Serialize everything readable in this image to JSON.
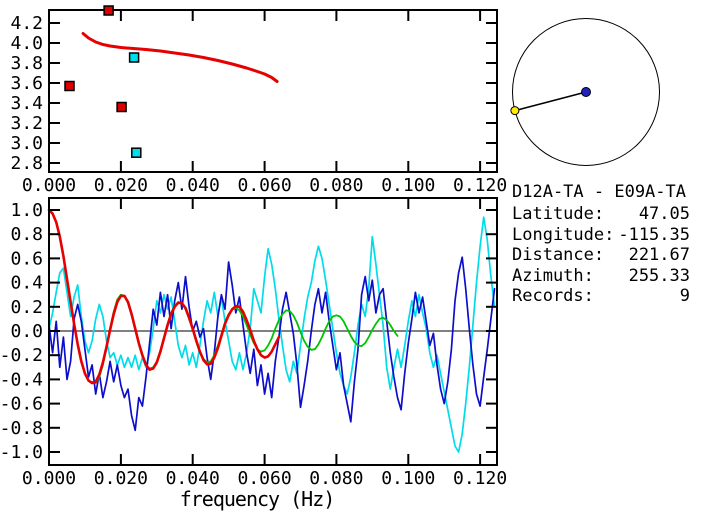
{
  "info_panel": {
    "title": "D12A-TA - E09A-TA",
    "rows": [
      {
        "label": "Latitude:",
        "value": "47.05"
      },
      {
        "label": "Longitude:",
        "value": "-115.35"
      },
      {
        "label": "Distance:",
        "value": "221.67"
      },
      {
        "label": "Azimuth:",
        "value": "255.33"
      },
      {
        "label": "Records:",
        "value": "9"
      }
    ]
  },
  "azimuth_diagram": {
    "azimuth_deg": 255.33,
    "circle_color": "#000000",
    "center_dot_color": "#2222bb",
    "station_dot_color": "#ffee00"
  },
  "colors": {
    "frame": "#000000",
    "red_curve": "#e60000",
    "green_curve": "#00c400",
    "blue_curve": "#0d0dcc",
    "cyan_curve": "#00dcea",
    "red_marker": "#dd0000",
    "cyan_marker": "#00dcea"
  },
  "chart_data": [
    {
      "id": "dispersion",
      "type": "line",
      "title": "",
      "xlabel": "",
      "ylabel": "",
      "xlim": [
        0,
        0.1247
      ],
      "ylim": [
        2.71,
        4.33
      ],
      "grid": false,
      "xticks": {
        "values": [
          0,
          0.02,
          0.04,
          0.06,
          0.08,
          0.1,
          0.12
        ],
        "labels": [
          "0.000",
          "0.020",
          "0.040",
          "0.060",
          "0.080",
          "0.100",
          "0.120"
        ]
      },
      "yticks": {
        "values": [
          2.8,
          3.0,
          3.2,
          3.4,
          3.6,
          3.8,
          4.0,
          4.2
        ],
        "labels": [
          "2.8",
          "3.0",
          "3.2",
          "3.4",
          "3.6",
          "3.8",
          "4.0",
          "4.2"
        ]
      },
      "series": [
        {
          "name": "model-dispersion",
          "color_key": "red_curve",
          "width": 3,
          "x": [
            0.0095,
            0.011,
            0.013,
            0.015,
            0.017,
            0.02,
            0.0235,
            0.027,
            0.031,
            0.035,
            0.039,
            0.043,
            0.047,
            0.051,
            0.055,
            0.058,
            0.06,
            0.062,
            0.0635
          ],
          "y": [
            4.095,
            4.05,
            4.01,
            3.985,
            3.97,
            3.955,
            3.945,
            3.935,
            3.92,
            3.9,
            3.88,
            3.855,
            3.825,
            3.79,
            3.75,
            3.715,
            3.69,
            3.655,
            3.615
          ]
        }
      ],
      "markers": [
        {
          "name": "red-observation",
          "shape": "square",
          "color_key": "red_marker",
          "points": [
            [
              0.0057,
              3.57
            ],
            [
              0.0202,
              3.36
            ],
            [
              0.0166,
              4.325
            ]
          ]
        },
        {
          "name": "cyan-observation",
          "shape": "square",
          "color_key": "cyan_marker",
          "points": [
            [
              0.0237,
              3.855
            ],
            [
              0.0243,
              2.903
            ]
          ]
        }
      ]
    },
    {
      "id": "cross-correlation",
      "type": "line",
      "title": "",
      "xlabel": "frequency (Hz)",
      "ylabel": "",
      "xlim": [
        0,
        0.1247
      ],
      "ylim": [
        -1.107,
        1.099
      ],
      "grid": false,
      "zero_line": true,
      "xticks": {
        "values": [
          0,
          0.02,
          0.04,
          0.06,
          0.08,
          0.1,
          0.12
        ],
        "labels": [
          "0.000",
          "0.020",
          "0.040",
          "0.060",
          "0.080",
          "0.100",
          "0.120"
        ]
      },
      "yticks": {
        "values": [
          -1.0,
          -0.8,
          -0.6,
          -0.4,
          -0.2,
          0.0,
          0.2,
          0.4,
          0.6,
          0.8,
          1.0
        ],
        "labels": [
          "-1.0",
          "-0.8",
          "-0.6",
          "-0.4",
          "-0.2",
          "0.0",
          "0.2",
          "0.4",
          "0.6",
          "0.8",
          "1.0"
        ]
      },
      "series": [
        {
          "name": "observed-spectrum-cyan",
          "color_key": "cyan_curve",
          "width": 1.7,
          "x0": 0,
          "dx": 0.001,
          "y": [
            0.02,
            0.15,
            0.32,
            0.48,
            0.52,
            0.32,
            0.12,
            0.28,
            0.38,
            0.12,
            -0.08,
            -0.18,
            -0.08,
            0.1,
            0.22,
            0.12,
            -0.08,
            -0.22,
            -0.18,
            -0.28,
            -0.2,
            -0.3,
            -0.22,
            -0.3,
            -0.2,
            -0.32,
            -0.22,
            -0.3,
            -0.18,
            0.02,
            0.25,
            0.15,
            0.3,
            0.18,
            0.28,
            0.08,
            -0.12,
            -0.22,
            -0.12,
            -0.28,
            -0.18,
            -0.3,
            -0.12,
            0.08,
            0.25,
            0.15,
            0.32,
            0.12,
            0.28,
            0.08,
            -0.08,
            -0.25,
            -0.32,
            -0.18,
            -0.32,
            -0.18,
            0.02,
            0.35,
            0.25,
            0.15,
            0.45,
            0.68,
            0.55,
            0.35,
            0.1,
            -0.12,
            -0.32,
            -0.42,
            -0.25,
            -0.35,
            -0.12,
            0.1,
            0.28,
            0.4,
            0.58,
            0.7,
            0.6,
            0.42,
            0.22,
            0.02,
            -0.18,
            -0.35,
            -0.45,
            -0.52,
            -0.38,
            -0.18,
            0.05,
            0.22,
            0.12,
            0.35,
            0.78,
            0.55,
            0.3,
            0.05,
            -0.3,
            -0.48,
            -0.3,
            -0.15,
            -0.3,
            -0.12,
            0.08,
            0.25,
            0.12,
            0.3,
            0.15,
            0.02,
            -0.18,
            -0.3,
            -0.2,
            -0.35,
            -0.5,
            -0.65,
            -0.8,
            -0.95,
            -1.0,
            -0.85,
            -0.6,
            -0.3,
            0.05,
            0.4,
            0.7,
            0.94,
            0.75,
            0.45,
            0.2
          ]
        },
        {
          "name": "observed-spectrum-blue",
          "color_key": "blue_curve",
          "width": 1.7,
          "x0": 0,
          "dx": 0.001,
          "y": [
            0.05,
            -0.18,
            0.08,
            -0.3,
            -0.05,
            -0.4,
            -0.25,
            0.1,
            0.22,
            0.08,
            -0.15,
            -0.38,
            -0.28,
            -0.52,
            -0.35,
            -0.55,
            -0.42,
            -0.25,
            -0.42,
            -0.28,
            -0.45,
            -0.55,
            -0.48,
            -0.7,
            -0.82,
            -0.55,
            -0.62,
            -0.38,
            -0.1,
            0.18,
            0.05,
            0.32,
            0.12,
            0.3,
            0.02,
            0.25,
            0.4,
            0.18,
            0.45,
            0.2,
            0.0,
            0.08,
            -0.05,
            0.02,
            -0.22,
            -0.4,
            -0.18,
            0.12,
            0.3,
            0.18,
            0.57,
            0.38,
            0.15,
            0.28,
            0.05,
            -0.18,
            -0.35,
            -0.15,
            -0.45,
            -0.28,
            -0.52,
            -0.35,
            -0.55,
            -0.25,
            -0.05,
            0.18,
            0.32,
            0.15,
            -0.02,
            -0.28,
            -0.63,
            -0.45,
            -0.25,
            0.0,
            0.22,
            0.35,
            0.15,
            0.32,
            0.08,
            -0.12,
            -0.32,
            -0.18,
            -0.45,
            -0.6,
            -0.75,
            -0.42,
            -0.15,
            0.3,
            0.45,
            0.25,
            0.42,
            0.15,
            0.3,
            0.35,
            0.08,
            -0.18,
            -0.38,
            -0.55,
            -0.65,
            -0.35,
            -0.1,
            0.1,
            0.32,
            0.15,
            0.28,
            0.08,
            -0.12,
            -0.02,
            -0.28,
            -0.48,
            -0.6,
            -0.42,
            -0.15,
            0.25,
            0.48,
            0.61,
            0.35,
            0.02,
            -0.28,
            -0.52,
            -0.62,
            -0.38,
            -0.15,
            0.1,
            0.35
          ]
        },
        {
          "name": "model-fit-green",
          "color_key": "green_curve",
          "width": 1.8,
          "x0": 0.012,
          "dx": 0.001,
          "y": [
            -0.42,
            -0.43,
            -0.38,
            -0.28,
            -0.14,
            0.02,
            0.16,
            0.26,
            0.3,
            0.29,
            0.23,
            0.13,
            0.01,
            -0.11,
            -0.21,
            -0.28,
            -0.31,
            -0.3,
            -0.25,
            -0.16,
            -0.05,
            0.06,
            0.15,
            0.21,
            0.24,
            0.23,
            0.18,
            0.1,
            0.01,
            -0.09,
            -0.17,
            -0.23,
            -0.26,
            -0.25,
            -0.2,
            -0.12,
            -0.03,
            0.07,
            0.14,
            0.18,
            0.19,
            0.17,
            0.12,
            0.05,
            -0.03,
            -0.1,
            -0.15,
            -0.17,
            -0.16,
            -0.12,
            -0.06,
            0.02,
            0.09,
            0.14,
            0.17,
            0.165,
            0.13,
            0.07,
            -0.01,
            -0.08,
            -0.13,
            -0.155,
            -0.15,
            -0.11,
            -0.05,
            0.02,
            0.08,
            0.12,
            0.13,
            0.12,
            0.08,
            0.02,
            -0.04,
            -0.09,
            -0.12,
            -0.125,
            -0.1,
            -0.05,
            0.01,
            0.06,
            0.1,
            0.11,
            0.09,
            0.05,
            0.0,
            -0.04
          ]
        },
        {
          "name": "model-bessel-red",
          "color_key": "red_curve",
          "width": 2.6,
          "x0": 0,
          "dx": 0.001,
          "y": [
            1.0,
            0.97,
            0.9,
            0.78,
            0.62,
            0.43,
            0.24,
            0.06,
            -0.11,
            -0.25,
            -0.35,
            -0.41,
            -0.43,
            -0.42,
            -0.36,
            -0.26,
            -0.13,
            0.01,
            0.14,
            0.24,
            0.29,
            0.29,
            0.24,
            0.14,
            0.02,
            -0.1,
            -0.2,
            -0.28,
            -0.32,
            -0.31,
            -0.26,
            -0.17,
            -0.06,
            0.05,
            0.14,
            0.2,
            0.235,
            0.23,
            0.19,
            0.11,
            0.02,
            -0.08,
            -0.17,
            -0.24,
            -0.275,
            -0.27,
            -0.22,
            -0.14,
            -0.04,
            0.06,
            0.13,
            0.18,
            0.205,
            0.2,
            0.16,
            0.09,
            0.01,
            -0.08,
            -0.15,
            -0.2,
            -0.22,
            -0.21,
            -0.17,
            -0.11,
            -0.05
          ]
        }
      ]
    }
  ]
}
